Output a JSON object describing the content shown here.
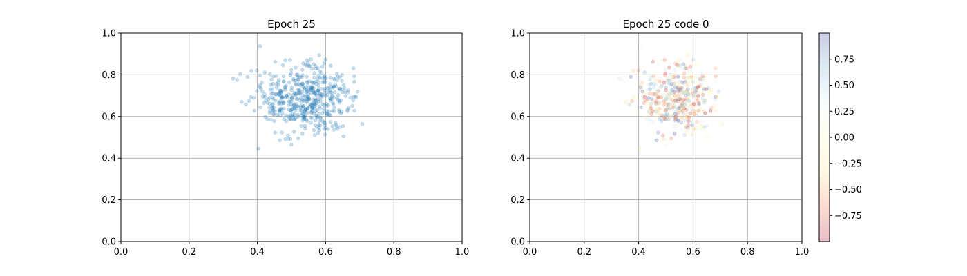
{
  "chart_data": [
    {
      "type": "scatter",
      "title": "Epoch 25",
      "xlabel": "",
      "ylabel": "",
      "xlim": [
        0.0,
        1.0
      ],
      "ylim": [
        0.0,
        1.0
      ],
      "xticks": [
        "0.0",
        "0.2",
        "0.4",
        "0.6",
        "0.8",
        "1.0"
      ],
      "yticks": [
        "0.0",
        "0.2",
        "0.4",
        "0.6",
        "0.8",
        "1.0"
      ],
      "grid": true,
      "point_color": "#1f77b4",
      "point_alpha": 0.25,
      "point_count": 500,
      "distribution": {
        "center_x": 0.54,
        "center_y": 0.69,
        "spread_x": 0.075,
        "spread_y": 0.085,
        "x_range": [
          0.32,
          0.71
        ],
        "y_range": [
          0.44,
          0.94
        ]
      }
    },
    {
      "type": "scatter",
      "title": "Epoch 25 code 0",
      "xlabel": "",
      "ylabel": "",
      "xlim": [
        0.0,
        1.0
      ],
      "ylim": [
        0.0,
        1.0
      ],
      "xticks": [
        "0.0",
        "0.2",
        "0.4",
        "0.6",
        "0.8",
        "1.0"
      ],
      "yticks": [
        "0.0",
        "0.2",
        "0.4",
        "0.6",
        "0.8",
        "1.0"
      ],
      "grid": true,
      "point_alpha": 0.25,
      "point_count": 500,
      "colormap": "RdYlBu",
      "distribution": {
        "center_x": 0.54,
        "center_y": 0.69,
        "spread_x": 0.075,
        "spread_y": 0.085,
        "x_range": [
          0.32,
          0.71
        ],
        "y_range": [
          0.44,
          0.94
        ]
      },
      "colorbar": {
        "range": [
          -1.0,
          1.0
        ],
        "ticks": [
          "0.75",
          "0.50",
          "0.25",
          "0.00",
          "−0.25",
          "−0.50",
          "−0.75"
        ],
        "tick_values": [
          0.75,
          0.5,
          0.25,
          0.0,
          -0.25,
          -0.5,
          -0.75
        ],
        "colors": [
          "#a50026",
          "#f46d43",
          "#fee090",
          "#ffffbf",
          "#e0f3f8",
          "#74add1",
          "#313695"
        ],
        "alpha": 0.25
      }
    }
  ]
}
